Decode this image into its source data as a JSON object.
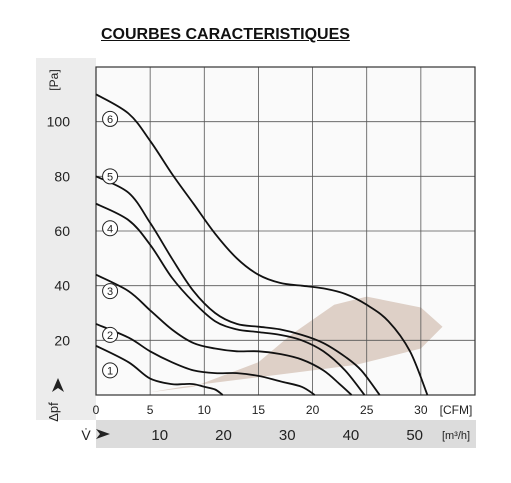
{
  "page": {
    "title": "COURBES CARACTERISTIQUES"
  },
  "chart_data": {
    "type": "line",
    "title": "COURBES CARACTERISTIQUES",
    "ylabel": "[Pa]",
    "y_axis_symbol": "Δpf",
    "xlabel": "[CFM]",
    "x2label": "[m³/h]",
    "x2_axis_symbol": "V̇",
    "xlim": [
      0,
      35
    ],
    "ylim": [
      0,
      120
    ],
    "x_ticks": [
      0,
      5,
      10,
      15,
      20,
      25,
      30
    ],
    "x2_ticks": [
      10,
      20,
      30,
      40,
      50
    ],
    "y_ticks": [
      20,
      40,
      60,
      80,
      100
    ],
    "grid": true,
    "series": [
      {
        "name": "1",
        "values": [
          [
            0,
            18
          ],
          [
            3,
            12
          ],
          [
            5,
            6
          ],
          [
            7,
            4
          ],
          [
            8,
            4
          ],
          [
            9,
            4
          ],
          [
            10,
            3
          ],
          [
            11,
            2
          ],
          [
            11.7,
            0
          ]
        ]
      },
      {
        "name": "2",
        "values": [
          [
            0,
            26
          ],
          [
            3,
            21
          ],
          [
            5,
            16
          ],
          [
            7,
            12
          ],
          [
            9,
            9
          ],
          [
            11,
            8
          ],
          [
            13,
            8
          ],
          [
            15,
            7
          ],
          [
            17,
            5
          ],
          [
            19,
            3
          ],
          [
            20.2,
            0
          ]
        ]
      },
      {
        "name": "3",
        "values": [
          [
            0,
            44
          ],
          [
            3,
            38
          ],
          [
            5,
            31
          ],
          [
            7,
            24
          ],
          [
            9,
            19
          ],
          [
            11,
            17
          ],
          [
            13,
            16
          ],
          [
            15,
            16
          ],
          [
            17,
            15
          ],
          [
            19,
            13
          ],
          [
            21,
            9
          ],
          [
            22.5,
            4
          ],
          [
            23.6,
            0
          ]
        ]
      },
      {
        "name": "4",
        "values": [
          [
            0,
            70
          ],
          [
            3,
            64
          ],
          [
            5,
            55
          ],
          [
            7,
            43
          ],
          [
            9,
            34
          ],
          [
            11,
            27
          ],
          [
            13,
            24
          ],
          [
            15,
            23
          ],
          [
            17,
            22
          ],
          [
            19,
            20
          ],
          [
            21,
            16
          ],
          [
            23,
            9
          ],
          [
            24.8,
            0
          ]
        ]
      },
      {
        "name": "5",
        "values": [
          [
            0,
            80
          ],
          [
            3,
            74
          ],
          [
            5,
            63
          ],
          [
            7,
            50
          ],
          [
            9,
            38
          ],
          [
            11,
            30
          ],
          [
            13,
            26
          ],
          [
            15,
            25
          ],
          [
            17,
            24
          ],
          [
            19,
            22
          ],
          [
            21,
            19
          ],
          [
            23,
            14
          ],
          [
            24.5,
            9
          ],
          [
            26.2,
            0
          ]
        ]
      },
      {
        "name": "6",
        "values": [
          [
            0,
            110
          ],
          [
            3,
            103
          ],
          [
            5,
            93
          ],
          [
            7,
            81
          ],
          [
            9,
            70
          ],
          [
            11,
            59
          ],
          [
            13,
            50
          ],
          [
            15,
            44
          ],
          [
            17,
            41
          ],
          [
            19,
            40
          ],
          [
            21,
            39
          ],
          [
            23,
            37
          ],
          [
            25,
            33
          ],
          [
            27,
            27
          ],
          [
            29,
            16
          ],
          [
            30.6,
            0
          ]
        ]
      }
    ],
    "colors": {
      "curve": "#111111",
      "grid": "#555555",
      "shade": "#d8c8bd",
      "panel": "#ececec",
      "bottom_band": "#dcdcdc"
    }
  }
}
